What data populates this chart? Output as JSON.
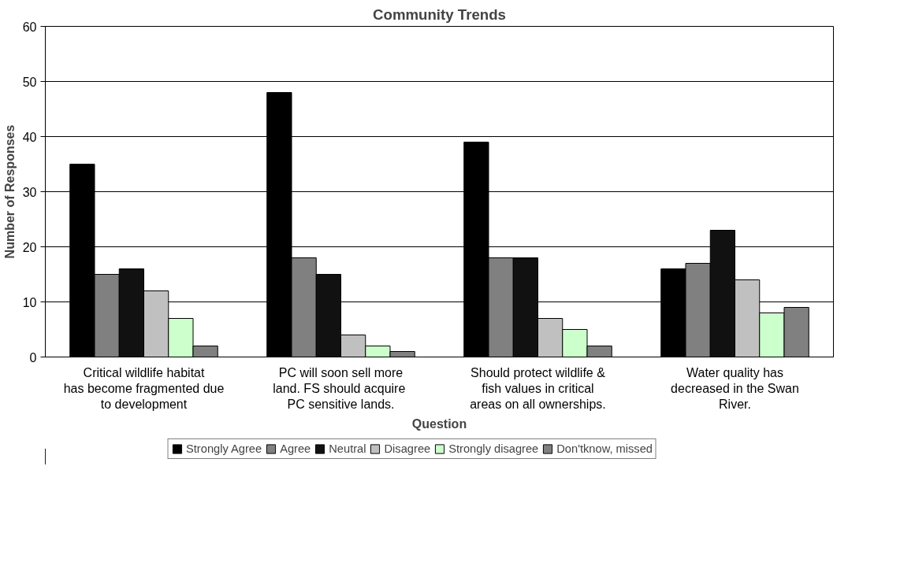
{
  "chart_data": {
    "type": "bar",
    "title": "Community Trends",
    "xlabel": "Question",
    "ylabel": "Number of Responses",
    "categories": [
      "Critical wildlife habitat has become fragmented due to development",
      "PC will soon sell more land.  FS should acquire PC sensitive lands.",
      "Should protect wildlife & fish values in critical areas on all ownerships.",
      "Water quality has decreased in the Swan River."
    ],
    "series": [
      {
        "name": "Strongly Agree",
        "color": "#000000",
        "values": [
          35,
          48,
          39,
          16
        ]
      },
      {
        "name": "Agree",
        "color": "#808080",
        "values": [
          15,
          18,
          18,
          17
        ]
      },
      {
        "name": "Neutral",
        "color": "#111111",
        "values": [
          16,
          15,
          18,
          23
        ]
      },
      {
        "name": "Disagree",
        "color": "#c0c0c0",
        "values": [
          12,
          4,
          7,
          14
        ]
      },
      {
        "name": "Strongly disagree",
        "color": "#ccffcc",
        "values": [
          7,
          2,
          5,
          8
        ]
      },
      {
        "name": "Don'tknow, missed",
        "color": "#808080",
        "values": [
          2,
          1,
          2,
          9
        ]
      }
    ],
    "ylim": [
      0,
      60
    ],
    "yticks": [
      0,
      10,
      20,
      30,
      40,
      50,
      60
    ],
    "grid": "y",
    "legend": "bottom"
  }
}
